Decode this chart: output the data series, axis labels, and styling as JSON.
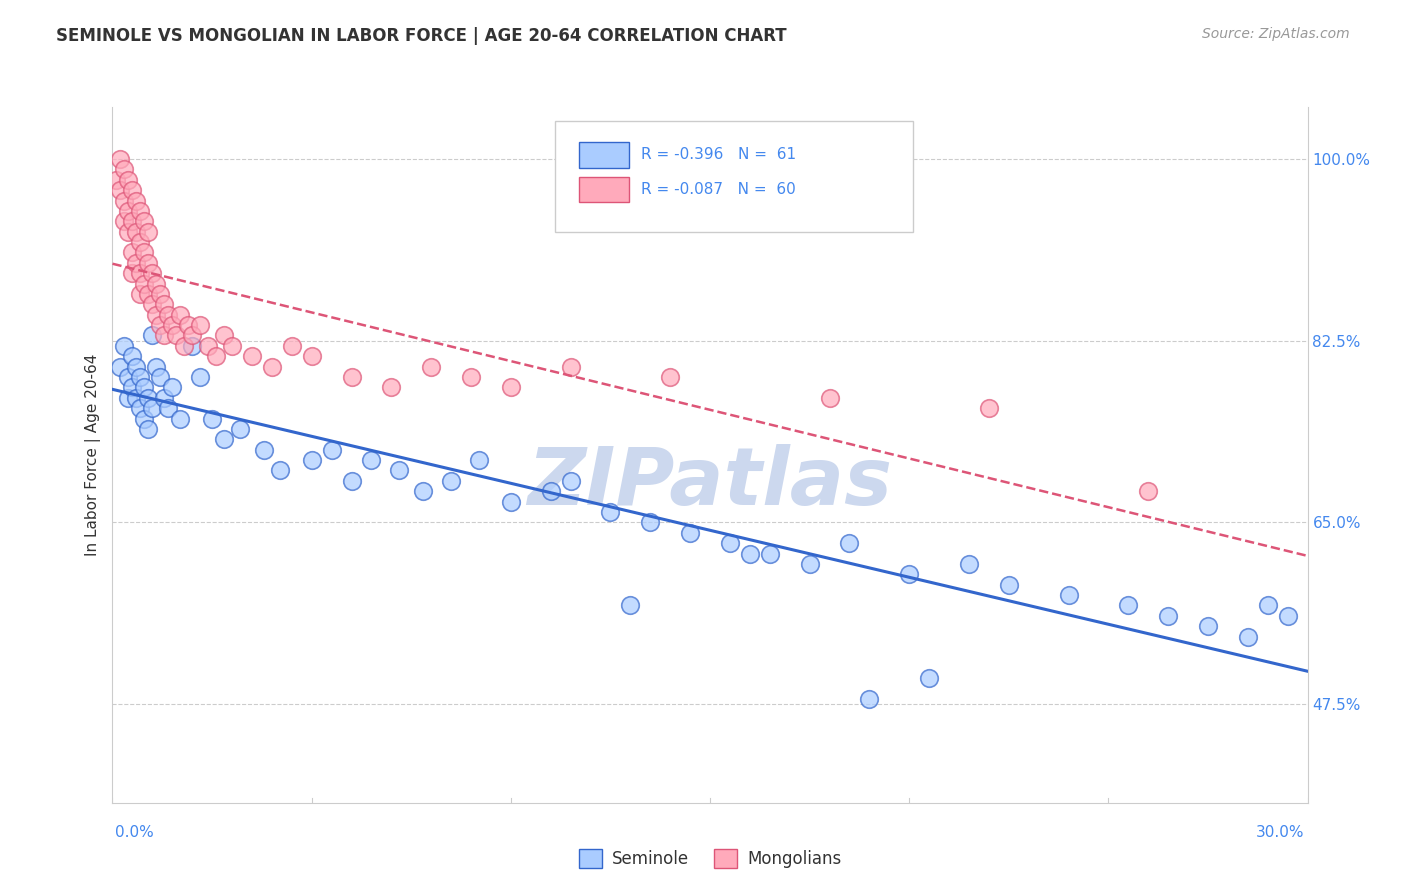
{
  "title": "SEMINOLE VS MONGOLIAN IN LABOR FORCE | AGE 20-64 CORRELATION CHART",
  "source": "Source: ZipAtlas.com",
  "xlabel_bottom_left": "0.0%",
  "xlabel_bottom_right": "30.0%",
  "ylabel": "In Labor Force | Age 20-64",
  "yticks": [
    "100.0%",
    "82.5%",
    "65.0%",
    "47.5%"
  ],
  "ytick_values": [
    1.0,
    0.825,
    0.65,
    0.475
  ],
  "xmin": 0.0,
  "xmax": 0.3,
  "ymin": 0.38,
  "ymax": 1.05,
  "r_seminole": -0.396,
  "n_seminole": 61,
  "r_mongolian": -0.087,
  "n_mongolian": 60,
  "color_seminole": "#aaccff",
  "color_mongolian": "#ffaabb",
  "line_color_seminole": "#3366cc",
  "line_color_mongolian": "#dd5577",
  "title_color": "#333333",
  "source_color": "#999999",
  "watermark_color": "#ccd8ee",
  "axis_color": "#cccccc",
  "grid_color": "#cccccc",
  "background": "#ffffff",
  "seminole_x": [
    0.002,
    0.003,
    0.004,
    0.004,
    0.005,
    0.005,
    0.006,
    0.006,
    0.007,
    0.007,
    0.008,
    0.008,
    0.009,
    0.009,
    0.01,
    0.01,
    0.011,
    0.012,
    0.013,
    0.014,
    0.015,
    0.017,
    0.02,
    0.022,
    0.025,
    0.028,
    0.032,
    0.038,
    0.042,
    0.05,
    0.055,
    0.06,
    0.065,
    0.072,
    0.078,
    0.085,
    0.092,
    0.1,
    0.11,
    0.115,
    0.125,
    0.135,
    0.145,
    0.155,
    0.165,
    0.175,
    0.185,
    0.2,
    0.215,
    0.225,
    0.24,
    0.255,
    0.265,
    0.275,
    0.285,
    0.295,
    0.19,
    0.205,
    0.13,
    0.16,
    0.29
  ],
  "seminole_y": [
    0.8,
    0.82,
    0.79,
    0.77,
    0.81,
    0.78,
    0.8,
    0.77,
    0.79,
    0.76,
    0.78,
    0.75,
    0.77,
    0.74,
    0.76,
    0.83,
    0.8,
    0.79,
    0.77,
    0.76,
    0.78,
    0.75,
    0.82,
    0.79,
    0.75,
    0.73,
    0.74,
    0.72,
    0.7,
    0.71,
    0.72,
    0.69,
    0.71,
    0.7,
    0.68,
    0.69,
    0.71,
    0.67,
    0.68,
    0.69,
    0.66,
    0.65,
    0.64,
    0.63,
    0.62,
    0.61,
    0.63,
    0.6,
    0.61,
    0.59,
    0.58,
    0.57,
    0.56,
    0.55,
    0.54,
    0.56,
    0.48,
    0.5,
    0.57,
    0.62,
    0.57
  ],
  "mongolian_x": [
    0.001,
    0.002,
    0.002,
    0.003,
    0.003,
    0.003,
    0.004,
    0.004,
    0.004,
    0.005,
    0.005,
    0.005,
    0.005,
    0.006,
    0.006,
    0.006,
    0.007,
    0.007,
    0.007,
    0.007,
    0.008,
    0.008,
    0.008,
    0.009,
    0.009,
    0.009,
    0.01,
    0.01,
    0.011,
    0.011,
    0.012,
    0.012,
    0.013,
    0.013,
    0.014,
    0.015,
    0.016,
    0.017,
    0.018,
    0.019,
    0.02,
    0.022,
    0.024,
    0.026,
    0.028,
    0.03,
    0.035,
    0.04,
    0.045,
    0.05,
    0.06,
    0.07,
    0.08,
    0.09,
    0.1,
    0.115,
    0.14,
    0.18,
    0.22,
    0.26
  ],
  "mongolian_y": [
    0.98,
    1.0,
    0.97,
    0.99,
    0.96,
    0.94,
    0.98,
    0.95,
    0.93,
    0.97,
    0.94,
    0.91,
    0.89,
    0.96,
    0.93,
    0.9,
    0.95,
    0.92,
    0.89,
    0.87,
    0.94,
    0.91,
    0.88,
    0.93,
    0.9,
    0.87,
    0.89,
    0.86,
    0.88,
    0.85,
    0.87,
    0.84,
    0.86,
    0.83,
    0.85,
    0.84,
    0.83,
    0.85,
    0.82,
    0.84,
    0.83,
    0.84,
    0.82,
    0.81,
    0.83,
    0.82,
    0.81,
    0.8,
    0.82,
    0.81,
    0.79,
    0.78,
    0.8,
    0.79,
    0.78,
    0.8,
    0.79,
    0.77,
    0.76,
    0.68
  ]
}
